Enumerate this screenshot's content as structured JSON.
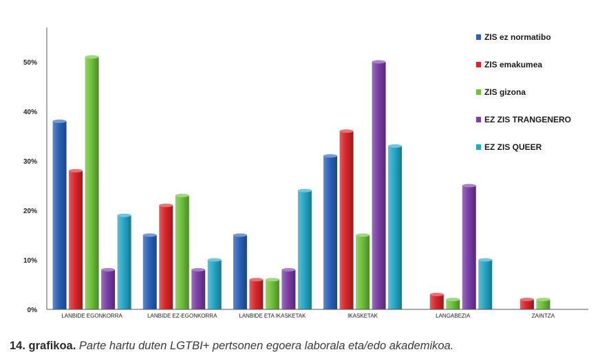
{
  "chart_data": {
    "type": "bar",
    "categories": [
      "LANBIDE EGONKORRA",
      "LANBIDE EZ-EGONKORRA",
      "LANBIDE ETA IKASKETAK",
      "IKASKETAK",
      "LANGABEZIA",
      "ZAINTZA"
    ],
    "series": [
      {
        "name": "ZIS ez normatibo",
        "color": "#2a62b8",
        "values": [
          38,
          15,
          15,
          31,
          0,
          0
        ]
      },
      {
        "name": "ZIS emakumea",
        "color": "#d8262b",
        "values": [
          28,
          21,
          6,
          36,
          3,
          2
        ]
      },
      {
        "name": "ZIS gizona",
        "color": "#6fc23c",
        "values": [
          51,
          23,
          6,
          15,
          2,
          2
        ]
      },
      {
        "name": "EZ ZIS TRANGENERO",
        "color": "#7a3ea6",
        "values": [
          8,
          8,
          8,
          50,
          25,
          0
        ]
      },
      {
        "name": "EZ ZIS QUEER",
        "color": "#27a7c6",
        "values": [
          19,
          10,
          24,
          33,
          10,
          0
        ]
      }
    ],
    "yticks": [
      "0%",
      "10%",
      "20%",
      "30%",
      "40%",
      "50%"
    ],
    "ylim": [
      0,
      55
    ],
    "legend_position": "top-right",
    "grid": false
  },
  "caption": {
    "label": "14. grafikoa.",
    "text": "Parte hartu duten LGTBI+ pertsonen egoera laborala eta/edo akademikoa."
  }
}
